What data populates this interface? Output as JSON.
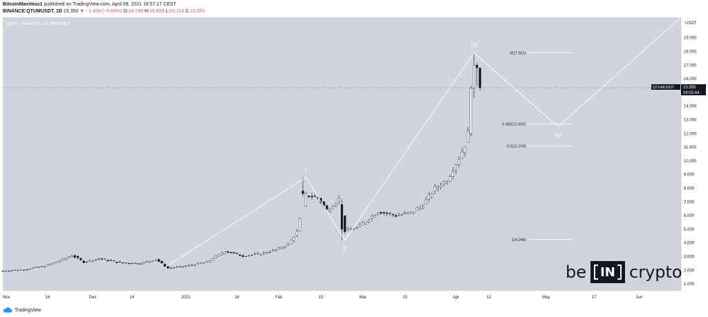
{
  "header": {
    "publisher": "BitcoinMaximus1",
    "published": "published on TradingView.com, April 09, 2021 16:57:17 CEST",
    "symbol": "BINANCE:QTUMUSDT, 1D",
    "price": "15.350",
    "change_arrow": "▼",
    "change": "−1.459 (−8.68%)",
    "o_label": "O:",
    "o_value": "16.788",
    "h_label": "H:",
    "h_value": "16.828",
    "l_label": "L:",
    "l_value": "15.114",
    "c_label": "C:",
    "c_value": "15.350"
  },
  "footer": {
    "brand": "TradingView"
  },
  "logo": {
    "left": "be",
    "middle": "IN",
    "right": "crypto"
  },
  "colors": {
    "plot_bg": "#d1d4dc",
    "candle": "#131722",
    "candle_up_body": "#ffffff",
    "line": "#ffffff",
    "fib": "#ffffff",
    "axis_text": "#131722",
    "price_tag_bg": "#131722"
  },
  "chart_data": {
    "type": "candlestick",
    "title": "Qtum / TetherUS, 1D, BINANCE",
    "y_axis_unit": "USDT",
    "ylim": [
      0.5,
      20.5
    ],
    "y_ticks": [
      "1.000",
      "2.000",
      "3.000",
      "4.000",
      "5.000",
      "6.000",
      "7.000",
      "8.000",
      "9.000",
      "10.000",
      "11.000",
      "12.000",
      "13.000",
      "14.000",
      "15.000",
      "16.000",
      "17.000",
      "18.000",
      "19.000",
      "20.000"
    ],
    "x_range": [
      "2020-11-01",
      "2021-06-15"
    ],
    "x_ticks": [
      {
        "label": "Nov",
        "date": "2020-11-01"
      },
      {
        "label": "16",
        "date": "2020-11-16"
      },
      {
        "label": "Dec",
        "date": "2020-12-01"
      },
      {
        "label": "14",
        "date": "2020-12-14"
      },
      {
        "label": "2021",
        "date": "2021-01-01"
      },
      {
        "label": "18",
        "date": "2021-01-18"
      },
      {
        "label": "Feb",
        "date": "2021-02-01"
      },
      {
        "label": "15",
        "date": "2021-02-15"
      },
      {
        "label": "Mar",
        "date": "2021-03-01"
      },
      {
        "label": "15",
        "date": "2021-03-15"
      },
      {
        "label": "Apr",
        "date": "2021-04-01"
      },
      {
        "label": "12",
        "date": "2021-04-12"
      },
      {
        "label": "May",
        "date": "2021-05-01"
      },
      {
        "label": "17",
        "date": "2021-05-17"
      },
      {
        "label": "Jun",
        "date": "2021-06-01"
      }
    ],
    "price_path": [
      [
        "2020-11-01",
        1.95
      ],
      [
        "2020-11-08",
        2.05
      ],
      [
        "2020-11-15",
        2.3
      ],
      [
        "2020-11-20",
        2.7
      ],
      [
        "2020-11-24",
        3.1
      ],
      [
        "2020-11-28",
        2.6
      ],
      [
        "2020-12-03",
        2.85
      ],
      [
        "2020-12-10",
        2.55
      ],
      [
        "2020-12-17",
        2.5
      ],
      [
        "2020-12-22",
        2.8
      ],
      [
        "2020-12-26",
        2.15
      ],
      [
        "2021-01-01",
        2.3
      ],
      [
        "2021-01-08",
        2.6
      ],
      [
        "2021-01-14",
        3.4
      ],
      [
        "2021-01-20",
        3.05
      ],
      [
        "2021-01-26",
        3.2
      ],
      [
        "2021-01-31",
        3.5
      ],
      [
        "2021-02-04",
        3.9
      ],
      [
        "2021-02-07",
        4.8
      ],
      [
        "2021-02-10",
        7.5
      ],
      [
        "2021-02-14",
        7.3
      ],
      [
        "2021-02-17",
        6.4
      ],
      [
        "2021-02-21",
        7.2
      ],
      [
        "2021-02-23",
        4.9
      ],
      [
        "2021-02-27",
        5.1
      ],
      [
        "2021-03-02",
        5.6
      ],
      [
        "2021-03-06",
        6.3
      ],
      [
        "2021-03-12",
        6.0
      ],
      [
        "2021-03-17",
        6.2
      ],
      [
        "2021-03-21",
        6.8
      ],
      [
        "2021-03-25",
        8.0
      ],
      [
        "2021-03-29",
        8.6
      ],
      [
        "2021-04-02",
        10.2
      ],
      [
        "2021-04-04",
        11.2
      ],
      [
        "2021-04-05",
        12.0
      ],
      [
        "2021-04-06",
        15.2
      ],
      [
        "2021-04-07",
        17.0
      ],
      [
        "2021-04-08",
        16.8
      ],
      [
        "2021-04-09",
        15.35
      ]
    ],
    "candles": [
      {
        "date": "2021-02-09",
        "open": 7.8,
        "high": 8.8,
        "low": 7.4,
        "close": 7.6
      },
      {
        "date": "2021-02-22",
        "open": 6.8,
        "high": 7.2,
        "low": 4.2,
        "close": 5.0
      },
      {
        "date": "2021-04-06",
        "open": 12.0,
        "high": 15.5,
        "low": 11.8,
        "close": 15.3
      },
      {
        "date": "2021-04-07",
        "open": 15.3,
        "high": 17.9,
        "low": 14.6,
        "close": 17.0
      },
      {
        "date": "2021-04-08",
        "open": 17.0,
        "high": 17.2,
        "low": 15.5,
        "close": 16.8
      },
      {
        "date": "2021-04-09",
        "open": 16.788,
        "high": 16.828,
        "low": 15.114,
        "close": 15.35
      }
    ],
    "wave_points": [
      {
        "label": "",
        "date": "2020-12-25",
        "price": 2.2
      },
      {
        "label": "I",
        "date": "2021-02-10",
        "price": 8.8
      },
      {
        "label": "II",
        "date": "2021-02-23",
        "price": 4.2
      },
      {
        "label": "III",
        "date": "2021-04-07",
        "price": 17.9
      },
      {
        "label": "IV",
        "date": "2021-05-05",
        "price": 12.5
      }
    ],
    "wave_projection": {
      "from": {
        "date": "2021-05-05",
        "price": 12.5
      },
      "to": {
        "date": "2021-06-15",
        "price": 20.5
      }
    },
    "fib_levels": [
      {
        "label": "0(17.911)",
        "price": 17.911
      },
      {
        "label": "0.382(12.691)",
        "price": 12.691
      },
      {
        "label": "0.5(11.079)",
        "price": 11.079
      },
      {
        "label": "1(4.248)",
        "price": 4.248
      }
    ],
    "fib_range": [
      "2021-04-25",
      "2021-05-10"
    ],
    "last_price": {
      "symbol": "QTUMUSDT",
      "price": "15.350",
      "countdown": "09:02:44",
      "value": 15.35
    }
  }
}
